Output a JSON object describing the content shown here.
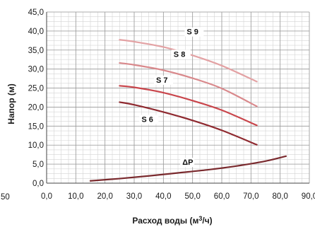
{
  "chart_data": {
    "type": "line",
    "xlabel": "Расход воды (м3/ч)",
    "xlabel_parts": {
      "main": "Расход воды (м",
      "sup": "3",
      "tail": "/ч)"
    },
    "ylabel": "Напор (м)",
    "xlim": [
      0,
      90
    ],
    "ylim": [
      0,
      45
    ],
    "grid": true,
    "x_tick_labels": [
      "0,0",
      "10,0",
      "20,0",
      "30,0",
      "40,0",
      "50,0",
      "60,0",
      "70,0",
      "80,0",
      "90,0"
    ],
    "y_tick_labels": [
      "0,0",
      "5,0",
      "10,0",
      "15,0",
      "20,0",
      "25,0",
      "30,0",
      "35,0",
      "40,0",
      "45,0"
    ],
    "cropped_left_label": "50",
    "series": [
      {
        "name": "S 9",
        "color": "#e3a2a4",
        "x": [
          25,
          30,
          40,
          50,
          60,
          72
        ],
        "y": [
          37.7,
          37.2,
          35.8,
          33.6,
          30.9,
          26.7
        ]
      },
      {
        "name": "S 8",
        "color": "#d9898c",
        "x": [
          25,
          30,
          40,
          50,
          60,
          72
        ],
        "y": [
          31.6,
          31.1,
          29.7,
          27.6,
          24.9,
          20.2
        ]
      },
      {
        "name": "S 7",
        "color": "#c9464c",
        "x": [
          25,
          30,
          40,
          50,
          60,
          72
        ],
        "y": [
          25.6,
          25.2,
          23.8,
          21.7,
          19.2,
          15.2
        ]
      },
      {
        "name": "S 6",
        "color": "#8f2a30",
        "x": [
          25,
          30,
          40,
          50,
          60,
          72
        ],
        "y": [
          21.3,
          20.6,
          18.7,
          16.5,
          13.9,
          10.1
        ]
      },
      {
        "name": "ΔP",
        "color": "#7a2a2e",
        "x": [
          15,
          25,
          35,
          45,
          55,
          65,
          75,
          82
        ],
        "y": [
          0.6,
          1.2,
          1.9,
          2.7,
          3.5,
          4.5,
          5.8,
          7.1
        ]
      }
    ]
  }
}
